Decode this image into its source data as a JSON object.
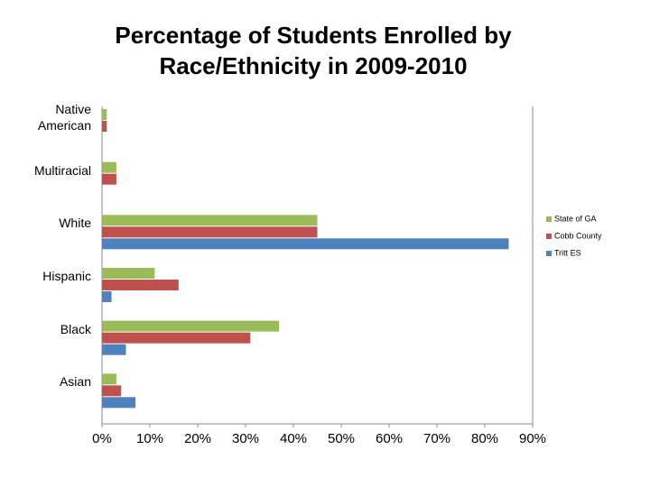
{
  "chart_data": {
    "type": "hbar",
    "title": "Percentage of Students Enrolled by Race/Ethnicity in 2009-2010",
    "categories": [
      "Native American",
      "Multiracial",
      "White",
      "Hispanic",
      "Black",
      "Asian"
    ],
    "series": [
      {
        "name": "State of GA",
        "color": "#9bbb59",
        "values": [
          1,
          3,
          45,
          11,
          37,
          3
        ]
      },
      {
        "name": "Cobb County",
        "color": "#c0504d",
        "values": [
          1,
          3,
          45,
          16,
          31,
          4
        ]
      },
      {
        "name": "Tritt ES",
        "color": "#4f81bd",
        "values": [
          null,
          null,
          85,
          2,
          5,
          7
        ]
      }
    ],
    "xlim": [
      0,
      90
    ],
    "xticks": [
      {
        "value": 0,
        "label": "0%"
      },
      {
        "value": 10,
        "label": "10%"
      },
      {
        "value": 20,
        "label": "20%"
      },
      {
        "value": 30,
        "label": "30%"
      },
      {
        "value": 40,
        "label": "40%"
      },
      {
        "value": 50,
        "label": "50%"
      },
      {
        "value": 60,
        "label": "60%"
      },
      {
        "value": 70,
        "label": "70%"
      },
      {
        "value": 80,
        "label": "80%"
      },
      {
        "value": 90,
        "label": "90%"
      }
    ],
    "legend": "right"
  }
}
